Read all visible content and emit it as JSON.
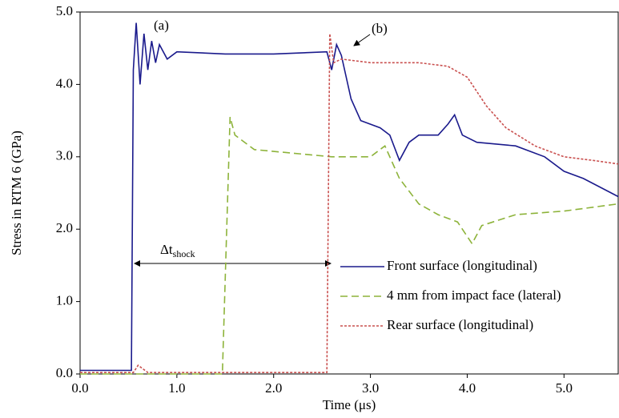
{
  "chart_data": {
    "type": "line",
    "x_label": "Time (μs)",
    "y_label": "Stress in RTM 6 (GPa)",
    "xlim": [
      0,
      5.56
    ],
    "ylim": [
      0,
      5
    ],
    "xticks": [
      {
        "value": 0,
        "label": "0.0"
      },
      {
        "value": 1,
        "label": "1.0"
      },
      {
        "value": 2,
        "label": "2.0"
      },
      {
        "value": 3,
        "label": "3.0"
      },
      {
        "value": 4,
        "label": "4.0"
      },
      {
        "value": 5,
        "label": "5.0"
      }
    ],
    "yticks": [
      {
        "value": 0,
        "label": "0.0"
      },
      {
        "value": 1,
        "label": "1.0"
      },
      {
        "value": 2,
        "label": "2.0"
      },
      {
        "value": 3,
        "label": "3.0"
      },
      {
        "value": 4,
        "label": "4.0"
      },
      {
        "value": 5,
        "label": "5.0"
      }
    ],
    "grid": false,
    "legend": "lower right",
    "annotations": [
      {
        "text": "(a)"
      },
      {
        "text": "(b)"
      },
      {
        "text": "Δt",
        "subscript": "shock"
      }
    ],
    "series": [
      {
        "name": "Front surface (longitudinal)",
        "color": "#1a1a8c",
        "style": "solid",
        "x": [
          0,
          0.53,
          0.55,
          0.58,
          0.62,
          0.66,
          0.7,
          0.74,
          0.78,
          0.82,
          0.9,
          1.0,
          1.5,
          2.0,
          2.55,
          2.6,
          2.65,
          2.7,
          2.8,
          2.9,
          3.1,
          3.2,
          3.3,
          3.4,
          3.5,
          3.7,
          3.8,
          3.87,
          3.95,
          4.1,
          4.5,
          4.8,
          5.0,
          5.2,
          5.56
        ],
        "values": [
          0.05,
          0.05,
          4.2,
          4.85,
          4.0,
          4.7,
          4.2,
          4.6,
          4.3,
          4.55,
          4.35,
          4.45,
          4.42,
          4.42,
          4.45,
          4.2,
          4.55,
          4.4,
          3.8,
          3.5,
          3.4,
          3.3,
          2.95,
          3.2,
          3.3,
          3.3,
          3.45,
          3.58,
          3.3,
          3.2,
          3.15,
          3.0,
          2.8,
          2.7,
          2.45
        ]
      },
      {
        "name": "4 mm from impact face (lateral)",
        "color": "#8db33a",
        "style": "dashed",
        "x": [
          0,
          1.47,
          1.55,
          1.6,
          1.8,
          2.2,
          2.6,
          3.0,
          3.15,
          3.3,
          3.5,
          3.7,
          3.9,
          4.05,
          4.15,
          4.5,
          5.0,
          5.56
        ],
        "values": [
          0,
          0,
          3.55,
          3.3,
          3.1,
          3.05,
          3.0,
          3.0,
          3.15,
          2.7,
          2.35,
          2.2,
          2.1,
          1.8,
          2.05,
          2.2,
          2.25,
          2.35
        ]
      },
      {
        "name": "Rear surface (longitudinal)",
        "color": "#c9504f",
        "style": "dotted",
        "x": [
          0,
          0.55,
          0.6,
          0.7,
          2.55,
          2.58,
          2.62,
          2.7,
          3.0,
          3.5,
          3.8,
          4.0,
          4.2,
          4.4,
          4.7,
          5.0,
          5.3,
          5.56
        ],
        "values": [
          0.02,
          0.02,
          0.12,
          0.02,
          0.02,
          4.7,
          4.3,
          4.35,
          4.3,
          4.3,
          4.25,
          4.1,
          3.7,
          3.4,
          3.15,
          3.0,
          2.95,
          2.9
        ]
      }
    ]
  }
}
